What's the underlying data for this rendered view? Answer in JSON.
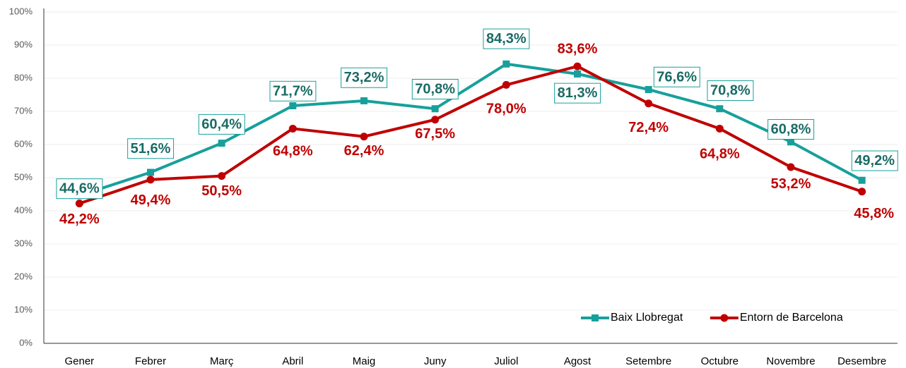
{
  "chart_data": {
    "type": "line",
    "categories": [
      "Gener",
      "Febrer",
      "Març",
      "Abril",
      "Maig",
      "Juny",
      "Juliol",
      "Agost",
      "Setembre",
      "Octubre",
      "Novembre",
      "Desembre"
    ],
    "series": [
      {
        "name": "Baix Llobregat",
        "color": "#17a09b",
        "label_color": "#1a6b65",
        "values": [
          44.6,
          51.6,
          60.4,
          71.7,
          73.2,
          70.8,
          84.3,
          81.3,
          76.6,
          70.8,
          60.8,
          49.2
        ],
        "value_labels": [
          "44,6%",
          "51,6%",
          "60,4%",
          "71,7%",
          "73,2%",
          "70,8%",
          "84,3%",
          "81,3%",
          "76,6%",
          "70,8%",
          "60,8%",
          "49,2%"
        ]
      },
      {
        "name": "Entorn de Barcelona",
        "color": "#c00000",
        "label_color": "#c00000",
        "values": [
          42.2,
          49.4,
          50.5,
          64.8,
          62.4,
          67.5,
          78.0,
          83.6,
          72.4,
          64.8,
          53.2,
          45.8
        ],
        "value_labels": [
          "42,2%",
          "49,4%",
          "50,5%",
          "64,8%",
          "62,4%",
          "67,5%",
          "78,0%",
          "83,6%",
          "72,4%",
          "64,8%",
          "53,2%",
          "45,8%"
        ]
      }
    ],
    "ylim": [
      0,
      100
    ],
    "yticks": [
      {
        "value": 0,
        "label": "0%"
      },
      {
        "value": 10,
        "label": "10%"
      },
      {
        "value": 20,
        "label": "20%"
      },
      {
        "value": 30,
        "label": "30%"
      },
      {
        "value": 40,
        "label": "40%"
      },
      {
        "value": 50,
        "label": "50%"
      },
      {
        "value": 60,
        "label": "60%"
      },
      {
        "value": 70,
        "label": "70%"
      },
      {
        "value": 80,
        "label": "80%"
      },
      {
        "value": 90,
        "label": "90%"
      },
      {
        "value": 100,
        "label": "100%"
      }
    ],
    "grid": true,
    "legend": "lower right"
  }
}
